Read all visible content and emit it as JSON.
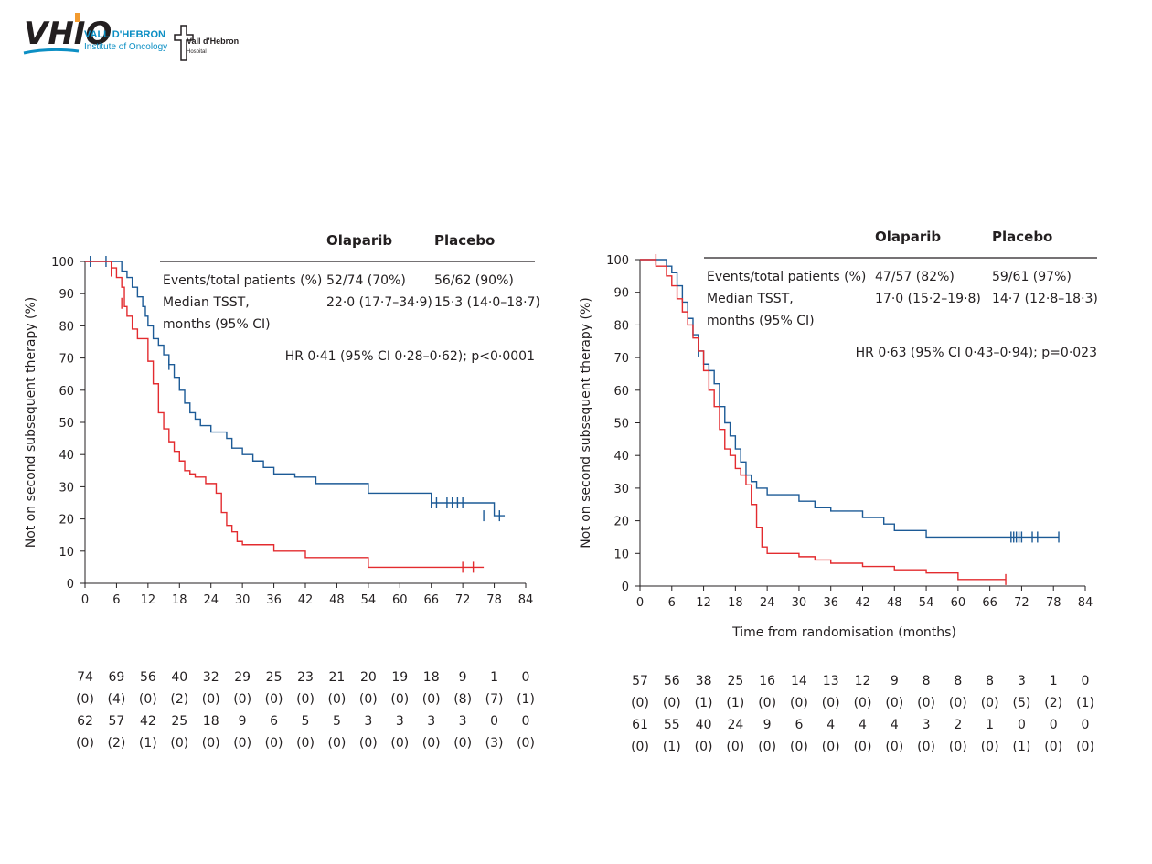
{
  "logos": {
    "vhio": "VHIO",
    "vhio_line1": "VALL D'HEBRON",
    "vhio_line2": "Institute of Oncology",
    "hospital_line1": "Vall d'Hebron",
    "hospital_line2": "Hospital"
  },
  "colors": {
    "olaparib": "#1c5a96",
    "placebo": "#e32b2f",
    "text": "#231f20"
  },
  "chart_data": [
    {
      "type": "line",
      "title": "",
      "xlabel": "",
      "ylabel": "Not on second subsequent therapy (%)",
      "xlim": [
        0,
        84
      ],
      "ylim": [
        0,
        100
      ],
      "xticks": [
        "0",
        "6",
        "12",
        "18",
        "24",
        "30",
        "36",
        "42",
        "48",
        "54",
        "60",
        "66",
        "72",
        "78",
        "84"
      ],
      "yticks": [
        "0",
        "10",
        "20",
        "30",
        "40",
        "50",
        "60",
        "70",
        "80",
        "90",
        "100"
      ],
      "table": {
        "col_olaparib": "Olaparib",
        "col_placebo": "Placebo",
        "row1_label": "Events/total patients (%)",
        "row1_olaparib": "52/74 (70%)",
        "row1_placebo": "56/62 (90%)",
        "row2_label_a": "Median TSST,",
        "row2_label_b": "months (95% CI)",
        "row2_olaparib": "22·0 (17·7–34·9)",
        "row2_placebo": "15·3 (14·0–18·7)",
        "hr": "HR 0·41 (95% CI 0·28–0·62); p<0·0001"
      },
      "series": [
        {
          "name": "Olaparib",
          "color": "#1c5a96",
          "x": [
            0,
            6,
            7,
            8,
            9,
            10,
            11,
            11.5,
            12,
            13,
            14,
            15,
            16,
            17,
            18,
            19,
            20,
            21,
            22,
            24,
            27,
            28,
            30,
            32,
            34,
            36,
            40,
            44,
            54,
            66,
            67,
            78,
            80
          ],
          "y": [
            100,
            100,
            97,
            95,
            92,
            89,
            86,
            83,
            80,
            76,
            74,
            71,
            68,
            64,
            60,
            56,
            53,
            51,
            49,
            47,
            45,
            42,
            40,
            38,
            36,
            34,
            33,
            31,
            28,
            25,
            25,
            21,
            21
          ],
          "censor_x": [
            1,
            4,
            16,
            66,
            67,
            69,
            70,
            71,
            72,
            76,
            79
          ],
          "censor_y": [
            100,
            100,
            68,
            25,
            25,
            25,
            25,
            25,
            25,
            21,
            21
          ]
        },
        {
          "name": "Placebo",
          "color": "#e32b2f",
          "x": [
            0,
            5,
            6,
            7,
            7.5,
            8,
            9,
            10,
            12,
            13,
            14,
            15,
            16,
            17,
            18,
            19,
            20,
            21,
            23,
            25,
            26,
            27,
            28,
            29,
            30,
            32,
            36,
            42,
            54,
            76
          ],
          "y": [
            100,
            98,
            95,
            92,
            86,
            83,
            79,
            76,
            69,
            62,
            53,
            48,
            44,
            41,
            38,
            35,
            34,
            33,
            31,
            28,
            22,
            18,
            16,
            13,
            12,
            12,
            10,
            8,
            5,
            5
          ],
          "censor_x": [
            5,
            7,
            72,
            74
          ],
          "censor_y": [
            97,
            87,
            5,
            5
          ]
        }
      ],
      "risk_table": {
        "olaparib_at_risk": [
          "74",
          "69",
          "56",
          "40",
          "32",
          "29",
          "25",
          "23",
          "21",
          "20",
          "19",
          "18",
          "9",
          "1",
          "0"
        ],
        "olaparib_censored": [
          "(0)",
          "(4)",
          "(0)",
          "(2)",
          "(0)",
          "(0)",
          "(0)",
          "(0)",
          "(0)",
          "(0)",
          "(0)",
          "(0)",
          "(8)",
          "(7)",
          "(1)"
        ],
        "placebo_at_risk": [
          "62",
          "57",
          "42",
          "25",
          "18",
          "9",
          "6",
          "5",
          "5",
          "3",
          "3",
          "3",
          "3",
          "0",
          "0"
        ],
        "placebo_censored": [
          "(0)",
          "(2)",
          "(1)",
          "(0)",
          "(0)",
          "(0)",
          "(0)",
          "(0)",
          "(0)",
          "(0)",
          "(0)",
          "(0)",
          "(0)",
          "(3)",
          "(0)"
        ]
      }
    },
    {
      "type": "line",
      "title": "",
      "xlabel": "Time from randomisation (months)",
      "ylabel": "Not on second subsequent therapy (%)",
      "xlim": [
        0,
        84
      ],
      "ylim": [
        0,
        100
      ],
      "xticks": [
        "0",
        "6",
        "12",
        "18",
        "24",
        "30",
        "36",
        "42",
        "48",
        "54",
        "60",
        "66",
        "72",
        "78",
        "84"
      ],
      "yticks": [
        "0",
        "10",
        "20",
        "30",
        "40",
        "50",
        "60",
        "70",
        "80",
        "90",
        "100"
      ],
      "table": {
        "col_olaparib": "Olaparib",
        "col_placebo": "Placebo",
        "row1_label": "Events/total patients (%)",
        "row1_olaparib": "47/57 (82%)",
        "row1_placebo": "59/61 (97%)",
        "row2_label_a": "Median TSST,",
        "row2_label_b": "months (95% CI)",
        "row2_olaparib": "17·0 (15·2–19·8)",
        "row2_placebo": "14·7 (12·8–18·3)",
        "hr": "HR 0·63 (95% CI 0·43–0·94); p=0·023"
      },
      "series": [
        {
          "name": "Olaparib",
          "color": "#1c5a96",
          "x": [
            0,
            5,
            6,
            7,
            8,
            9,
            10,
            11,
            12,
            13,
            14,
            15,
            16,
            17,
            18,
            19,
            20,
            21,
            22,
            24,
            27,
            30,
            33,
            36,
            42,
            46,
            48,
            54,
            70,
            79
          ],
          "y": [
            100,
            98,
            96,
            92,
            87,
            82,
            77,
            72,
            68,
            66,
            62,
            55,
            50,
            46,
            42,
            38,
            34,
            32,
            30,
            28,
            28,
            26,
            24,
            23,
            21,
            19,
            17,
            15,
            15,
            15
          ],
          "censor_x": [
            11,
            70,
            70.5,
            71,
            71.5,
            72,
            74,
            75,
            79
          ],
          "censor_y": [
            72,
            15,
            15,
            15,
            15,
            15,
            15,
            15,
            15
          ]
        },
        {
          "name": "Placebo",
          "color": "#e32b2f",
          "x": [
            0,
            3,
            5,
            6,
            7,
            8,
            9,
            10,
            11,
            12,
            13,
            14,
            15,
            16,
            17,
            18,
            19,
            20,
            21,
            22,
            23,
            24,
            27,
            30,
            33,
            36,
            42,
            48,
            54,
            60,
            66,
            69
          ],
          "y": [
            100,
            98,
            95,
            92,
            88,
            84,
            80,
            76,
            72,
            66,
            60,
            55,
            48,
            42,
            40,
            36,
            34,
            31,
            25,
            18,
            12,
            10,
            10,
            9,
            8,
            7,
            6,
            5,
            4,
            2,
            2,
            2
          ],
          "censor_x": [
            3,
            69
          ],
          "censor_y": [
            100,
            2
          ]
        }
      ],
      "risk_table": {
        "olaparib_at_risk": [
          "57",
          "56",
          "38",
          "25",
          "16",
          "14",
          "13",
          "12",
          "9",
          "8",
          "8",
          "8",
          "3",
          "1",
          "0"
        ],
        "olaparib_censored": [
          "(0)",
          "(0)",
          "(1)",
          "(1)",
          "(0)",
          "(0)",
          "(0)",
          "(0)",
          "(0)",
          "(0)",
          "(0)",
          "(0)",
          "(5)",
          "(2)",
          "(1)"
        ],
        "placebo_at_risk": [
          "61",
          "55",
          "40",
          "24",
          "9",
          "6",
          "4",
          "4",
          "4",
          "3",
          "2",
          "1",
          "0",
          "0",
          "0"
        ],
        "placebo_censored": [
          "(0)",
          "(1)",
          "(0)",
          "(0)",
          "(0)",
          "(0)",
          "(0)",
          "(0)",
          "(0)",
          "(0)",
          "(0)",
          "(0)",
          "(1)",
          "(0)",
          "(0)"
        ]
      }
    }
  ]
}
